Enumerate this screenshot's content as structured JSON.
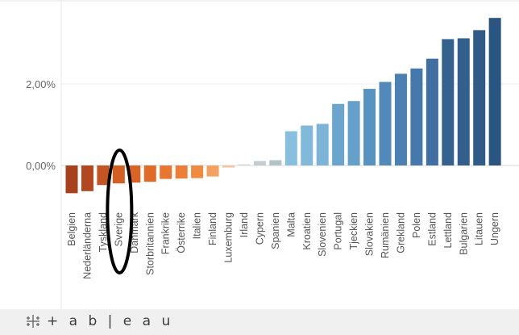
{
  "chart_data": {
    "type": "bar",
    "title": "",
    "xlabel": "",
    "ylabel": "",
    "ylim": [
      -1.0,
      3.9
    ],
    "y_ticks": [
      {
        "value": 0,
        "label": "0,00%"
      },
      {
        "value": 2,
        "label": "2,00%"
      }
    ],
    "grid": true,
    "categories": [
      "Belgien",
      "Nederländerna",
      "Tyskland",
      "Sverige",
      "Danmark",
      "Storbritannien",
      "Frankrike",
      "Österrike",
      "Italien",
      "Finland",
      "Luxemburg",
      "Irland",
      "Cypern",
      "Spanien",
      "Malta",
      "Kroatien",
      "Slovenien",
      "Portugal",
      "Tjeckien",
      "Slovakien",
      "Rumänien",
      "Grekland",
      "Polen",
      "Estland",
      "Lettland",
      "Bulgarien",
      "Litauen",
      "Ungern"
    ],
    "values": [
      -0.68,
      -0.63,
      -0.48,
      -0.44,
      -0.42,
      -0.4,
      -0.33,
      -0.32,
      -0.31,
      -0.27,
      -0.05,
      0.03,
      0.11,
      0.13,
      0.84,
      0.98,
      1.02,
      1.51,
      1.58,
      1.88,
      2.05,
      2.25,
      2.38,
      2.62,
      3.1,
      3.12,
      3.32,
      3.62
    ],
    "colors": [
      "#a8401c",
      "#b34820",
      "#c45522",
      "#d45f23",
      "#db6424",
      "#e06a28",
      "#e8762f",
      "#ec7e36",
      "#f08a41",
      "#f4a15f",
      "#f6c49c",
      "#d8dadb",
      "#c5cdd1",
      "#b4c2ca",
      "#88bfdf",
      "#82b9db",
      "#7cb4d7",
      "#6aa5ce",
      "#64a0ca",
      "#5893c0",
      "#518aba",
      "#4a80b2",
      "#4579ab",
      "#3f6fa3",
      "#34628f",
      "#325f8b",
      "#2f5b86",
      "#2b5581"
    ],
    "highlight": "Sverige"
  },
  "footer": {
    "brand": "+ a b | e a u",
    "icon": "tableau-logo-icon"
  }
}
